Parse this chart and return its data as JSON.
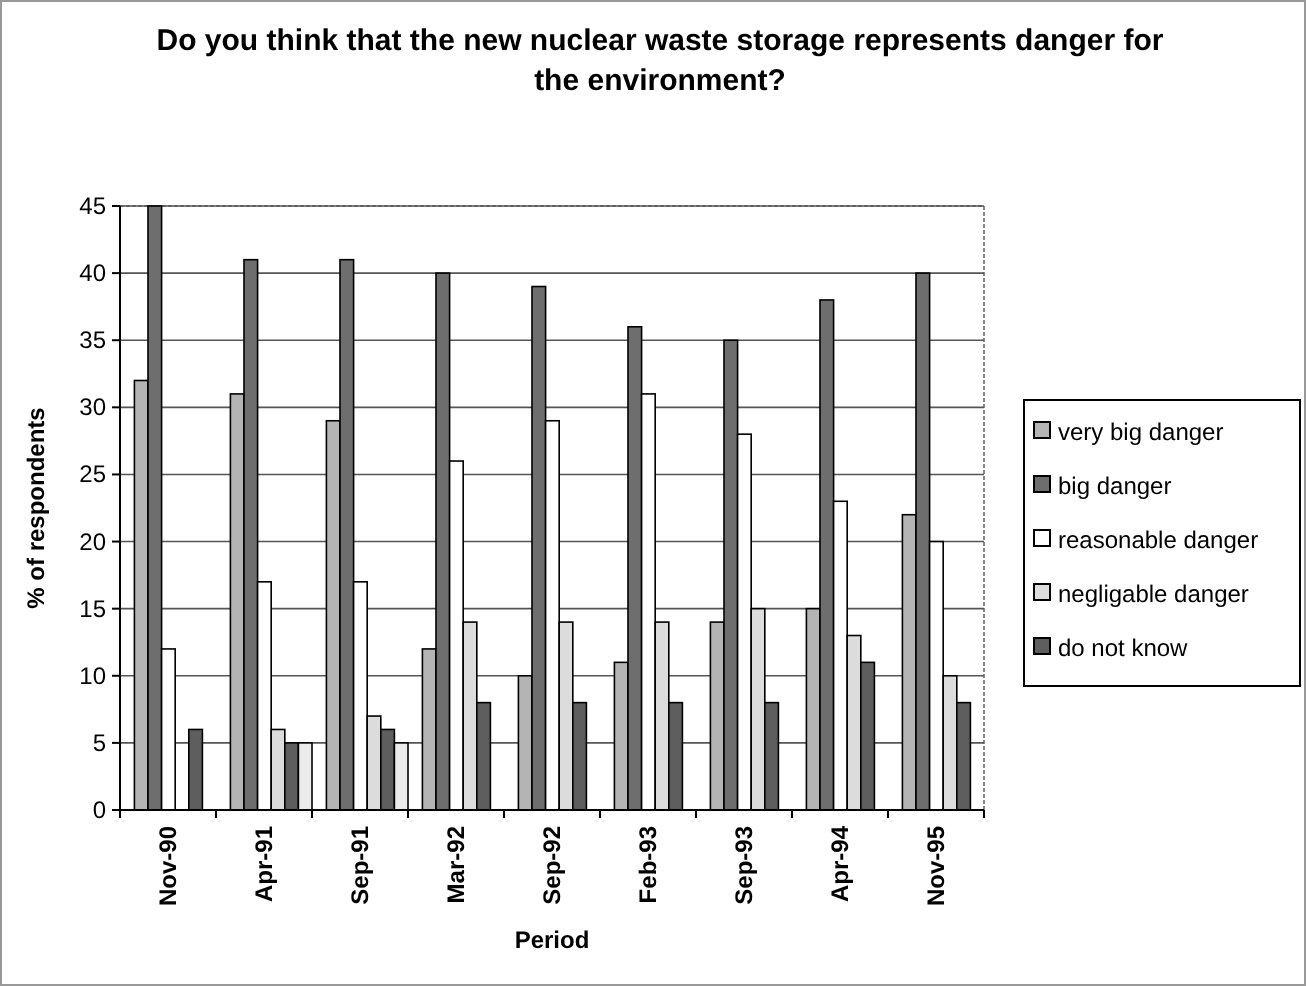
{
  "chart_data": {
    "type": "bar",
    "title": "Do you think that the new nuclear waste storage represents danger for the environment?",
    "xlabel": "Period",
    "ylabel": "% of respondents",
    "categories": [
      "Nov-90",
      "Apr-91",
      "Sep-91",
      "Mar-92",
      "Sep-92",
      "Feb-93",
      "Sep-93",
      "Apr-94",
      "Nov-95"
    ],
    "series": [
      {
        "name": "very big danger",
        "color": "#b4b4b4",
        "values": [
          32,
          31,
          29,
          12,
          10,
          11,
          14,
          15,
          22
        ]
      },
      {
        "name": "big danger",
        "color": "#6e6e6e",
        "values": [
          45,
          41,
          41,
          40,
          39,
          36,
          35,
          38,
          40
        ]
      },
      {
        "name": "reasonable danger",
        "color": "#ffffff",
        "values": [
          12,
          17,
          17,
          26,
          29,
          31,
          28,
          23,
          20
        ]
      },
      {
        "name": "negligable danger",
        "color": "#dcdcdc",
        "values": [
          null,
          6,
          7,
          14,
          14,
          14,
          15,
          13,
          10
        ]
      },
      {
        "name": "do not know",
        "color": "#5e5e5e",
        "values": [
          6,
          5,
          6,
          8,
          8,
          8,
          8,
          11,
          8
        ]
      },
      {
        "color": "#ececec",
        "values": [
          null,
          5,
          5,
          null,
          null,
          null,
          null,
          null,
          null
        ]
      }
    ],
    "ylim": [
      0,
      45
    ],
    "yticks": [
      0,
      5,
      10,
      15,
      20,
      25,
      30,
      35,
      40,
      45
    ],
    "grid": "y",
    "legend": "right"
  }
}
